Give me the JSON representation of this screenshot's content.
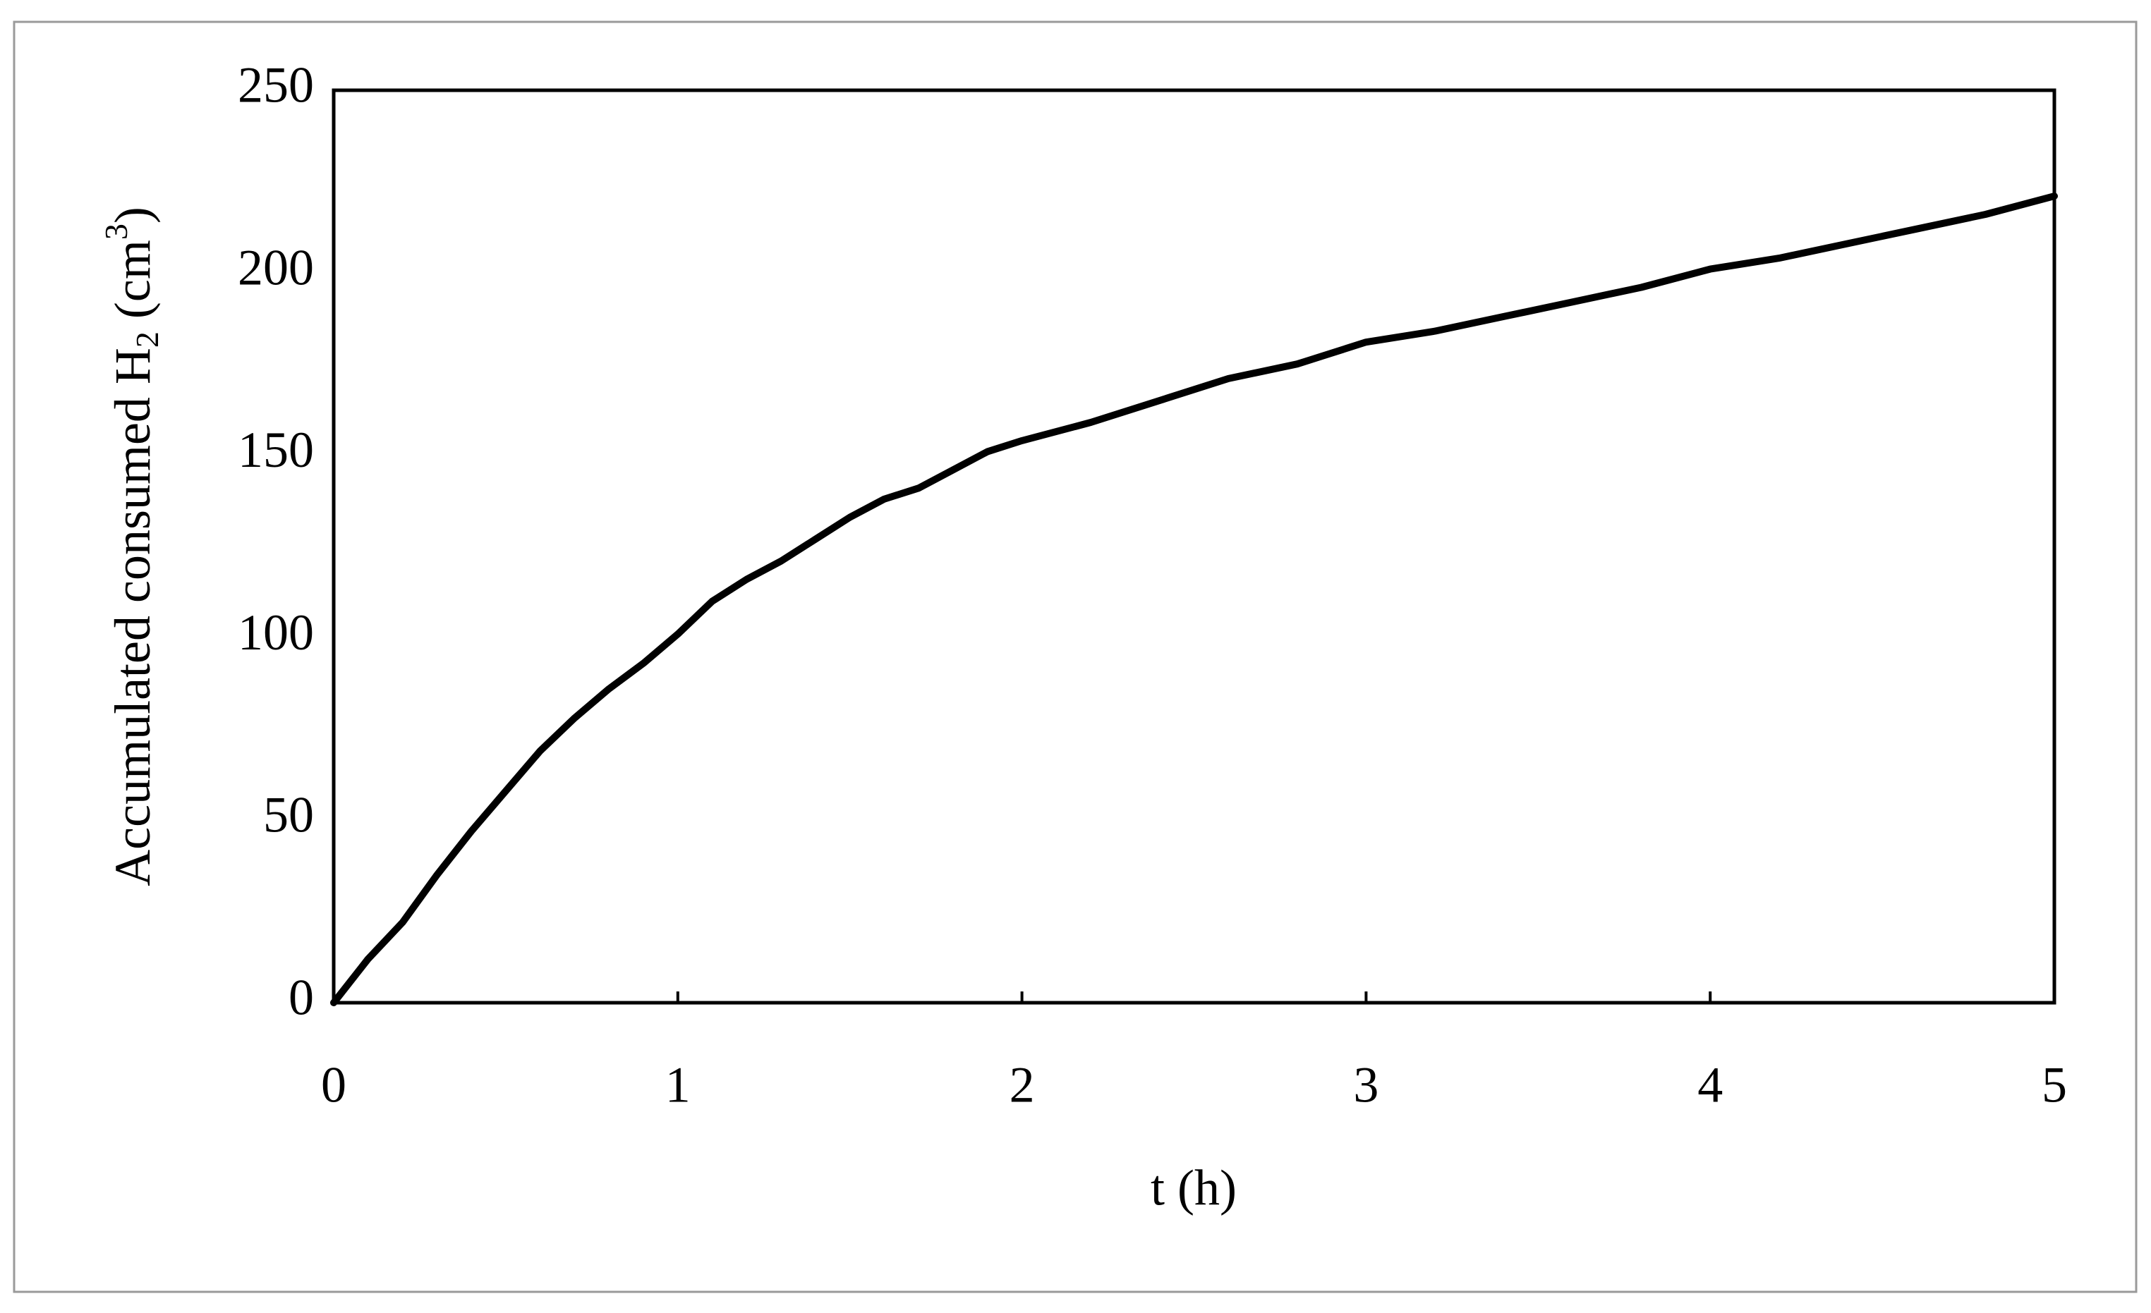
{
  "chart_data": {
    "type": "line",
    "xlabel": "t (h)",
    "ylabel": [
      "Accumulated consumed H",
      "2",
      "(cm",
      "3",
      ")"
    ],
    "x": [
      0,
      0.1,
      0.2,
      0.3,
      0.4,
      0.5,
      0.6,
      0.7,
      0.8,
      0.9,
      1.0,
      1.1,
      1.2,
      1.3,
      1.4,
      1.5,
      1.6,
      1.7,
      1.8,
      1.9,
      2.0,
      2.2,
      2.4,
      2.6,
      2.8,
      3.0,
      3.2,
      3.4,
      3.6,
      3.8,
      4.0,
      4.2,
      4.4,
      4.6,
      4.8,
      5.0
    ],
    "series": [
      {
        "color": "#000000",
        "values": [
          0,
          12,
          22,
          35,
          47,
          58,
          69,
          78,
          86,
          93,
          101,
          110,
          116,
          121,
          127,
          133,
          138,
          141,
          146,
          151,
          154,
          159,
          165,
          171,
          175,
          181,
          184,
          188,
          192,
          196,
          201,
          204,
          208,
          212,
          216,
          221
        ]
      }
    ],
    "xlim": [
      0,
      5
    ],
    "xticks": [
      0,
      1,
      2,
      3,
      4,
      5
    ],
    "ylim": [
      0,
      250
    ],
    "yticks": [
      0,
      50,
      100,
      150,
      200,
      250
    ]
  }
}
